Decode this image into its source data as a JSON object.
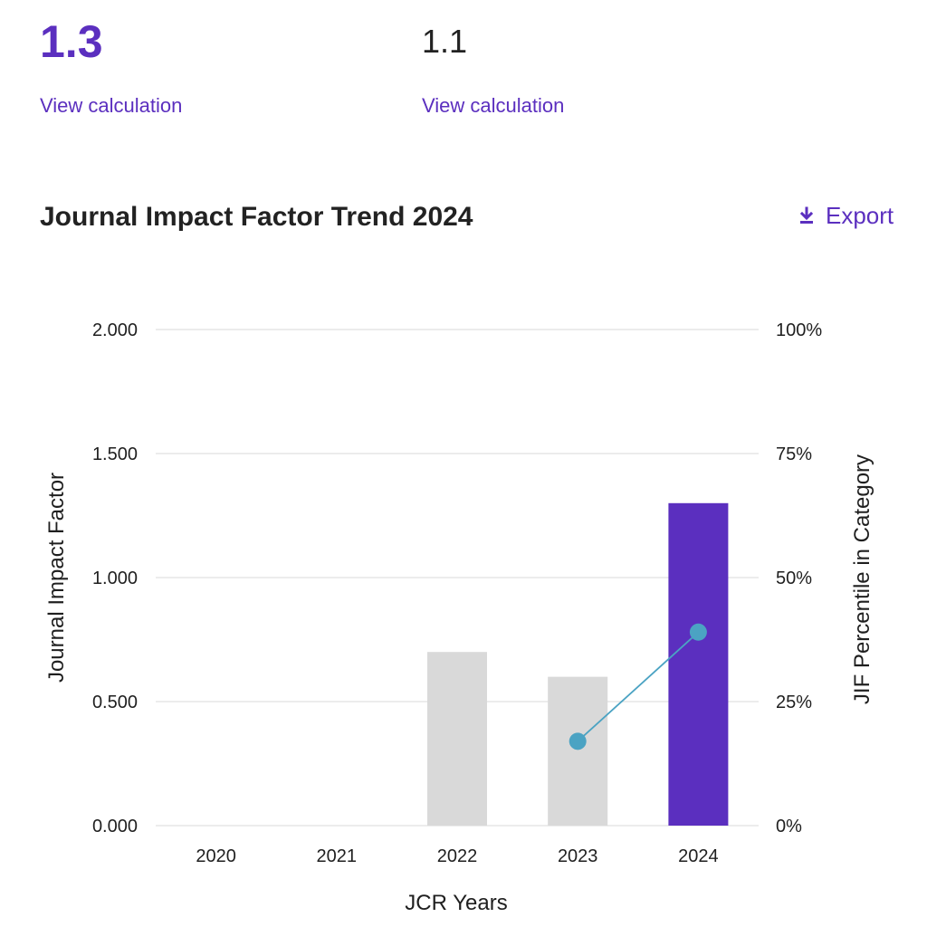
{
  "metrics": {
    "primary": {
      "value": "1.3",
      "link_label": "View calculation"
    },
    "secondary": {
      "value": "1.1",
      "link_label": "View calculation"
    }
  },
  "header": {
    "title": "Journal Impact Factor Trend 2024",
    "export_label": "Export",
    "export_icon": "download-icon"
  },
  "colors": {
    "accent": "#5b2fbf",
    "bar_default": "#d9d9d9",
    "bar_highlight": "#5b2fbf",
    "percentile_line": "#4ba3c3",
    "grid": "#e6e6e6"
  },
  "chart_data": {
    "type": "bar",
    "xlabel": "JCR Years",
    "ylabel": "Journal Impact Factor",
    "y2label": "JIF Percentile in Category",
    "categories": [
      "2020",
      "2021",
      "2022",
      "2023",
      "2024"
    ],
    "series": [
      {
        "values": [
          null,
          null,
          0.7,
          0.6,
          1.3
        ],
        "highlight": "2024"
      },
      {
        "axis": "secondary",
        "type": "line",
        "values": [
          null,
          null,
          null,
          17,
          39
        ]
      }
    ],
    "ylim": [
      0,
      2
    ],
    "y_ticks": [
      "0.000",
      "0.500",
      "1.000",
      "1.500",
      "2.000"
    ],
    "y2lim": [
      0,
      100
    ],
    "y2_ticks": [
      "0%",
      "25%",
      "50%",
      "75%",
      "100%"
    ],
    "grid": true
  }
}
